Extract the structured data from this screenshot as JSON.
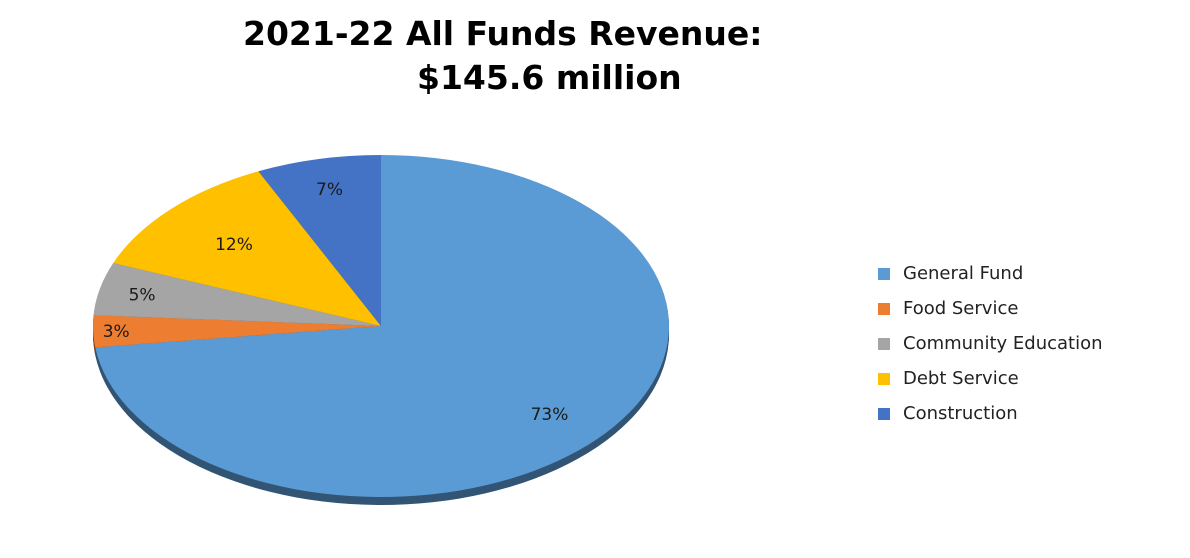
{
  "chart_data": {
    "type": "pie",
    "title": "2021-22 All Funds Revenue:",
    "subtitle": "$145.6 million",
    "legend_position": "right",
    "slices": [
      {
        "name": "General Fund",
        "value": 73,
        "label": "73%",
        "color": "#5B9BD5"
      },
      {
        "name": "Food Service",
        "value": 3,
        "label": "3%",
        "color": "#ED7D31"
      },
      {
        "name": "Community Education",
        "value": 5,
        "label": "5%",
        "color": "#A5A5A5"
      },
      {
        "name": "Debt Service",
        "value": 12,
        "label": "12%",
        "color": "#FFC000"
      },
      {
        "name": "Construction",
        "value": 7,
        "label": "7%",
        "color": "#4472C4"
      }
    ]
  }
}
